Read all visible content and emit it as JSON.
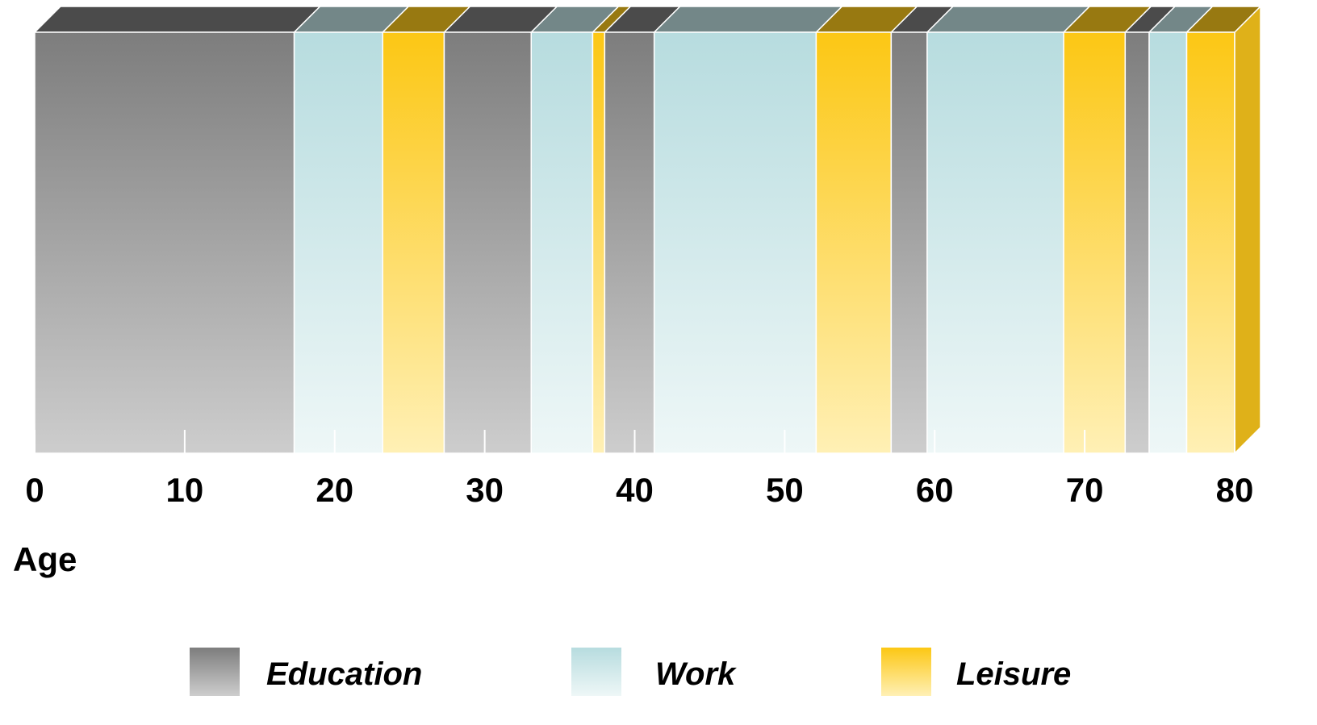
{
  "chart_data": {
    "type": "bar",
    "subtype": "stacked-horizontal-timeline-3d",
    "x_axis": {
      "label": "Age",
      "range": [
        0,
        80
      ],
      "ticks": [
        "0",
        "10",
        "20",
        "30",
        "40",
        "50",
        "60",
        "70",
        "80"
      ]
    },
    "categories": [
      "Education",
      "Work",
      "Leisure"
    ],
    "colors": {
      "Education": "#888888",
      "Work": "#bfe1e3",
      "Leisure": "#fdc91c"
    },
    "segments": [
      {
        "category": "Education",
        "start": 0,
        "end": 17.3
      },
      {
        "category": "Work",
        "start": 17.3,
        "end": 23.2
      },
      {
        "category": "Leisure",
        "start": 23.2,
        "end": 27.3
      },
      {
        "category": "Education",
        "start": 27.3,
        "end": 33.1
      },
      {
        "category": "Work",
        "start": 33.1,
        "end": 37.2
      },
      {
        "category": "Leisure",
        "start": 37.2,
        "end": 38.0
      },
      {
        "category": "Education",
        "start": 38.0,
        "end": 41.3
      },
      {
        "category": "Work",
        "start": 41.3,
        "end": 52.1
      },
      {
        "category": "Leisure",
        "start": 52.1,
        "end": 57.1
      },
      {
        "category": "Education",
        "start": 57.1,
        "end": 59.5
      },
      {
        "category": "Work",
        "start": 59.5,
        "end": 68.6
      },
      {
        "category": "Leisure",
        "start": 68.6,
        "end": 72.7
      },
      {
        "category": "Education",
        "start": 72.7,
        "end": 74.3
      },
      {
        "category": "Work",
        "start": 74.3,
        "end": 76.8
      },
      {
        "category": "Leisure",
        "start": 76.8,
        "end": 80.0
      }
    ],
    "legend": {
      "placement": "bottom",
      "items": [
        "Education",
        "Work",
        "Leisure"
      ]
    }
  }
}
